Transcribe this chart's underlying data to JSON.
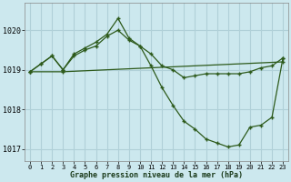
{
  "title": "Graphe pression niveau de la mer (hPa)",
  "background_color": "#cce8ee",
  "grid_color": "#b0d0d8",
  "line_color": "#2d5a1b",
  "xlim": [
    -0.5,
    23.5
  ],
  "ylim": [
    1016.7,
    1020.7
  ],
  "yticks": [
    1017,
    1018,
    1019,
    1020
  ],
  "xticks": [
    0,
    1,
    2,
    3,
    4,
    5,
    6,
    7,
    8,
    9,
    10,
    11,
    12,
    13,
    14,
    15,
    16,
    17,
    18,
    19,
    20,
    21,
    22,
    23
  ],
  "series": [
    {
      "x": [
        0,
        3,
        23
      ],
      "y": [
        1018.95,
        1018.95,
        1019.2
      ]
    },
    {
      "x": [
        0,
        1,
        2,
        3,
        4,
        5,
        6,
        7,
        8,
        9,
        10,
        11,
        12,
        13,
        14,
        15,
        16,
        17,
        18,
        19,
        20,
        21,
        22,
        23
      ],
      "y": [
        1018.95,
        1019.15,
        1019.35,
        1019.0,
        1019.35,
        1019.5,
        1019.6,
        1019.85,
        1020.0,
        1019.75,
        1019.6,
        1019.4,
        1019.1,
        1019.0,
        1018.8,
        1018.85,
        1018.9,
        1018.9,
        1018.9,
        1018.9,
        1018.95,
        1019.05,
        1019.1,
        1019.3
      ]
    },
    {
      "x": [
        0,
        1,
        2,
        3,
        4,
        5,
        6,
        7,
        8,
        9,
        10,
        11,
        12,
        13,
        14,
        15,
        16,
        17,
        18,
        19,
        20,
        21,
        22,
        23
      ],
      "y": [
        1018.95,
        1019.15,
        1019.35,
        1019.0,
        1019.4,
        1019.55,
        1019.7,
        1019.9,
        1020.3,
        1019.8,
        1019.6,
        1019.1,
        1018.55,
        1018.1,
        1017.7,
        1017.5,
        1017.25,
        1017.15,
        1017.05,
        1017.1,
        1017.55,
        1017.6,
        1017.8,
        1019.3
      ]
    }
  ]
}
